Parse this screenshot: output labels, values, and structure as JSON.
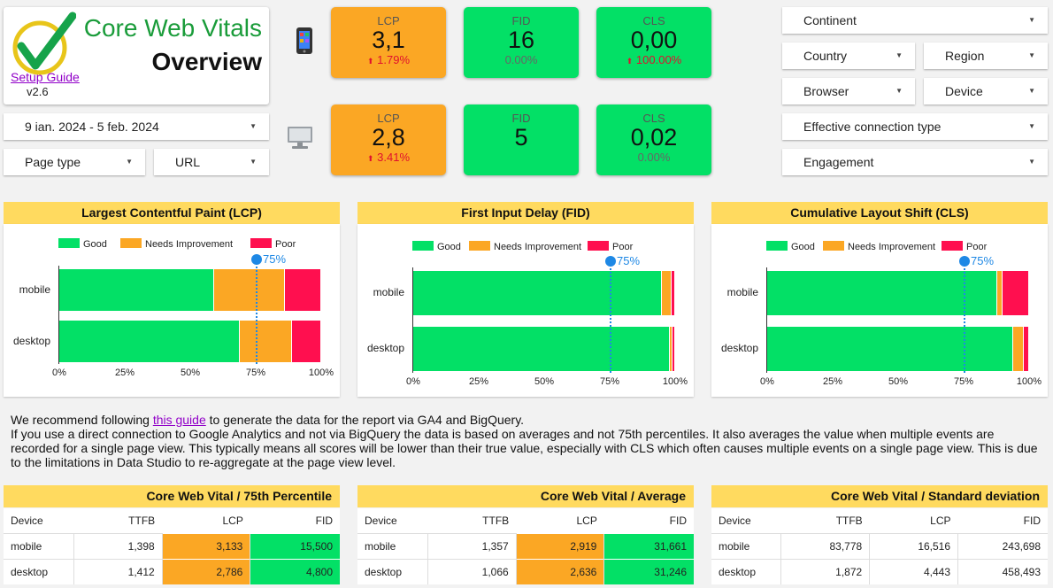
{
  "header": {
    "title": "Core Web Vitals",
    "subtitle": "Overview",
    "setup_link": "Setup Guide",
    "version": "v2.6"
  },
  "filters": {
    "date_range": "9 ian. 2024 - 5 feb. 2024",
    "page_type": "Page type",
    "url": "URL",
    "continent": "Continent",
    "country": "Country",
    "region": "Region",
    "browser": "Browser",
    "device": "Device",
    "connection": "Effective connection type",
    "engagement": "Engagement"
  },
  "kpis": {
    "mobile": [
      {
        "label": "LCP",
        "value": "3,1",
        "change": "1.79%",
        "status": "orange",
        "trend": "up-bad"
      },
      {
        "label": "FID",
        "value": "16",
        "change": "0.00%",
        "status": "green",
        "trend": "neutral"
      },
      {
        "label": "CLS",
        "value": "0,00",
        "change": "100.00%",
        "status": "green",
        "trend": "up-bad"
      }
    ],
    "desktop": [
      {
        "label": "LCP",
        "value": "2,8",
        "change": "3.41%",
        "status": "orange",
        "trend": "up-bad"
      },
      {
        "label": "FID",
        "value": "5",
        "change": "",
        "status": "green",
        "trend": "neutral"
      },
      {
        "label": "CLS",
        "value": "0,02",
        "change": "0.00%",
        "status": "green",
        "trend": "neutral"
      }
    ]
  },
  "colors": {
    "good": "#03e066",
    "needs_improvement": "#fba724",
    "poor": "#ff0f4f",
    "header_yellow": "#ffda5f",
    "p75": "#1e88e5"
  },
  "chart_data": [
    {
      "type": "bar",
      "title": "Largest Contentful Paint (LCP)",
      "categories": [
        "mobile",
        "desktop"
      ],
      "series": [
        {
          "name": "Good",
          "values": [
            59,
            69
          ]
        },
        {
          "name": "Needs Improvement",
          "values": [
            27,
            20
          ]
        },
        {
          "name": "Poor",
          "values": [
            14,
            11
          ]
        }
      ],
      "xlim": [
        0,
        100
      ],
      "xticks": [
        "0%",
        "25%",
        "50%",
        "75%",
        "100%"
      ],
      "reference_line": {
        "value": 75,
        "label": "75%"
      },
      "legend": "top"
    },
    {
      "type": "bar",
      "title": "First Input Delay (FID)",
      "categories": [
        "mobile",
        "desktop"
      ],
      "series": [
        {
          "name": "Good",
          "values": [
            95,
            98
          ]
        },
        {
          "name": "Needs Improvement",
          "values": [
            3.8,
            1
          ]
        },
        {
          "name": "Poor",
          "values": [
            1.2,
            1
          ]
        }
      ],
      "xlim": [
        0,
        100
      ],
      "xticks": [
        "0%",
        "25%",
        "50%",
        "75%",
        "100%"
      ],
      "reference_line": {
        "value": 75,
        "label": "75%"
      },
      "legend": "top"
    },
    {
      "type": "bar",
      "title": "Cumulative Layout Shift (CLS)",
      "categories": [
        "mobile",
        "desktop"
      ],
      "series": [
        {
          "name": "Good",
          "values": [
            88,
            94
          ]
        },
        {
          "name": "Needs Improvement",
          "values": [
            2,
            4
          ]
        },
        {
          "name": "Poor",
          "values": [
            10,
            2
          ]
        }
      ],
      "xlim": [
        0,
        100
      ],
      "xticks": [
        "0%",
        "25%",
        "50%",
        "75%",
        "100%"
      ],
      "reference_line": {
        "value": 75,
        "label": "75%"
      },
      "legend": "top"
    }
  ],
  "info": {
    "line1_pre": "We recommend following ",
    "line1_link": "this guide",
    "line1_post": " to generate the data for the report via GA4 and BigQuery.",
    "line2": "If you use a direct connection to Google Analytics and not via BigQuery the data is based on averages and not 75th percentiles. It also averages the value when multiple events are recorded for a single page view. This typically means all scores will be lower than their true value, especially with CLS which often causes multiple events on a single page view. This is due to the limitations in Data Studio to re-aggregate at the page view level."
  },
  "tables": [
    {
      "title": "Core Web Vital / 75th Percentile",
      "columns": [
        "Device",
        "TTFB",
        "LCP",
        "FID"
      ],
      "rows": [
        [
          "mobile",
          "1,398",
          "3,133",
          "15,500"
        ],
        [
          "desktop",
          "1,412",
          "2,786",
          "4,800"
        ]
      ],
      "highlight": true
    },
    {
      "title": "Core Web Vital / Average",
      "columns": [
        "Device",
        "TTFB",
        "LCP",
        "FID"
      ],
      "rows": [
        [
          "mobile",
          "1,357",
          "2,919",
          "31,661"
        ],
        [
          "desktop",
          "1,066",
          "2,636",
          "31,246"
        ]
      ],
      "highlight": true
    },
    {
      "title": "Core Web Vital / Standard deviation",
      "columns": [
        "Device",
        "TTFB",
        "LCP",
        "FID"
      ],
      "rows": [
        [
          "mobile",
          "83,778",
          "16,516",
          "243,698"
        ],
        [
          "desktop",
          "1,872",
          "4,443",
          "458,493"
        ]
      ],
      "highlight": false
    }
  ]
}
